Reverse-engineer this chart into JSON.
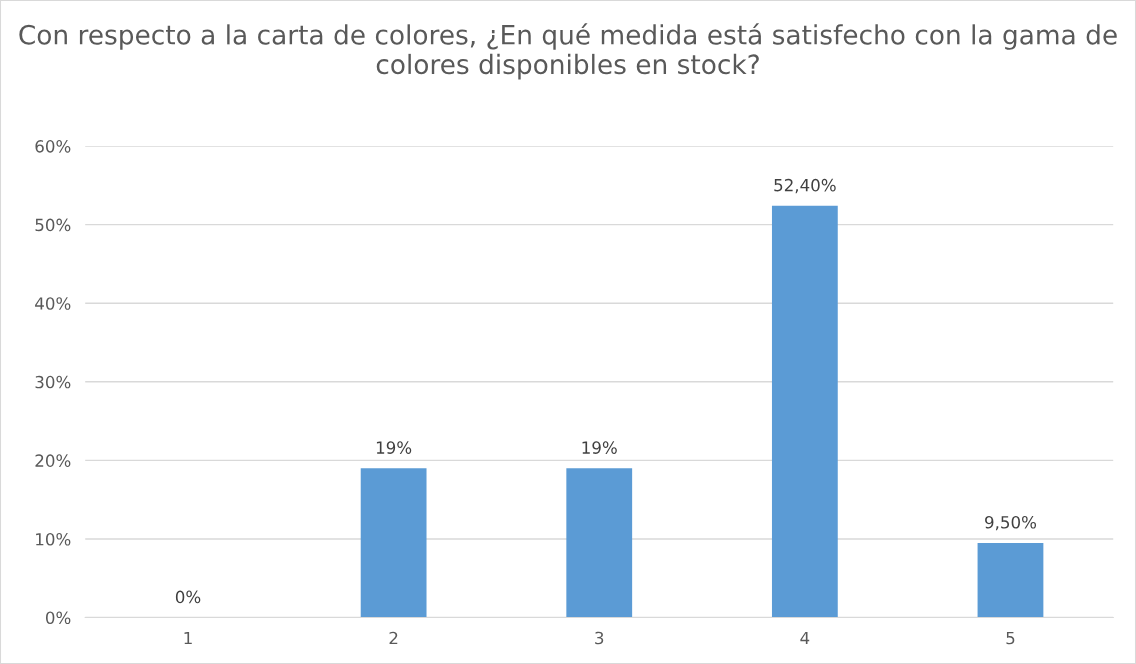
{
  "chart_data": {
    "type": "bar",
    "title": "Con respecto a la carta de colores, ¿En qué medida está satisfecho con la gama de colores disponibles en stock?",
    "categories": [
      "1",
      "2",
      "3",
      "4",
      "5"
    ],
    "values": [
      0,
      19,
      19,
      52.4,
      9.5
    ],
    "value_labels": [
      "0%",
      "19%",
      "19%",
      "52,40%",
      "9,50%"
    ],
    "color": "#5b9bd5",
    "ylim": [
      0,
      60
    ],
    "yticks": [
      {
        "value": 0,
        "label": "0%"
      },
      {
        "value": 10,
        "label": "10%"
      },
      {
        "value": 20,
        "label": "20%"
      },
      {
        "value": 30,
        "label": "30%"
      },
      {
        "value": 40,
        "label": "40%"
      },
      {
        "value": 50,
        "label": "50%"
      },
      {
        "value": 60,
        "label": "60%"
      }
    ],
    "grid": "y",
    "legend": false
  }
}
